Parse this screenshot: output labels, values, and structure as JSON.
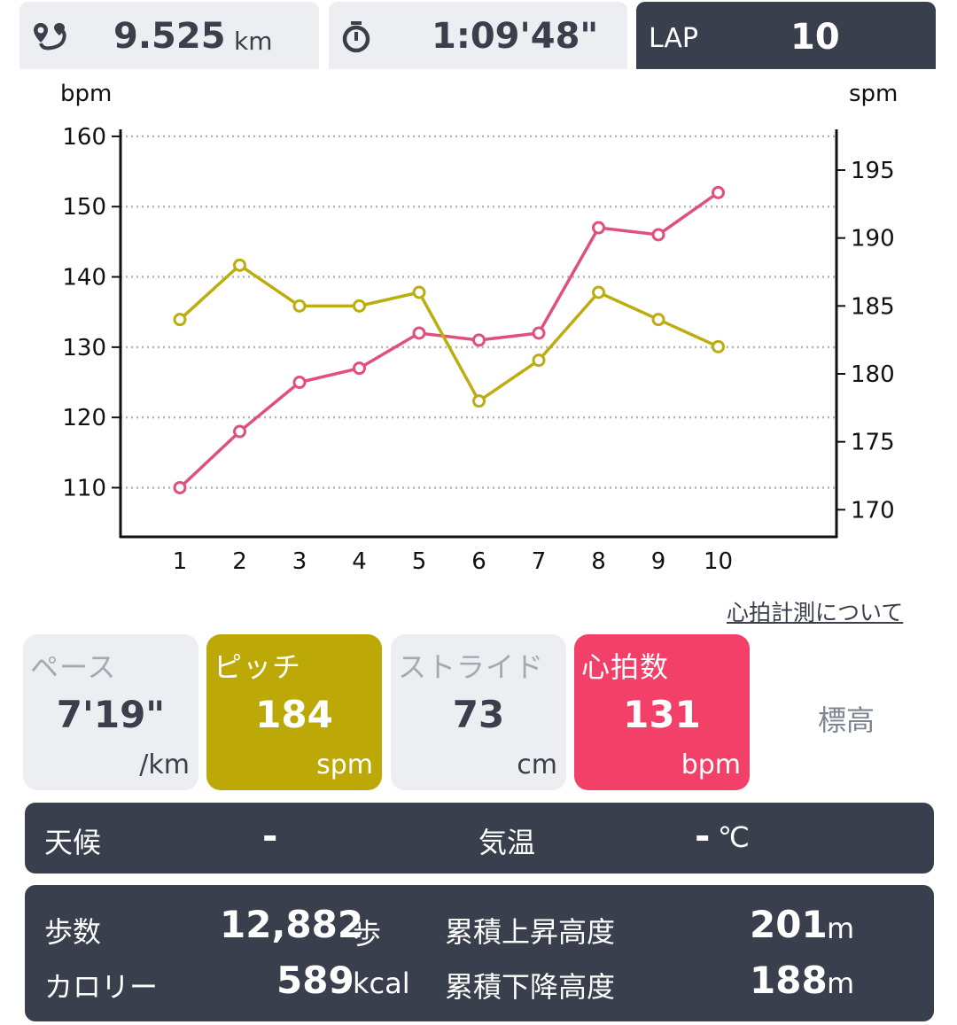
{
  "summary": {
    "distance_value": "9.525",
    "distance_unit": "km",
    "time_value": "1:09'48\"",
    "lap_label": "LAP",
    "lap_value": "10"
  },
  "icons": {
    "distance": "route-pin-icon",
    "time": "stopwatch-icon"
  },
  "chart_data": {
    "type": "line",
    "x": [
      1,
      2,
      3,
      4,
      5,
      6,
      7,
      8,
      9,
      10
    ],
    "categories": [
      "1",
      "2",
      "3",
      "4",
      "5",
      "6",
      "7",
      "8",
      "9",
      "10"
    ],
    "left_axis_label": "bpm",
    "right_axis_label": "spm",
    "left_ticks": [
      "160",
      "150",
      "140",
      "130",
      "120",
      "110"
    ],
    "right_ticks": [
      "195",
      "190",
      "185",
      "180",
      "175",
      "170"
    ],
    "ylim_left": [
      103,
      161
    ],
    "ylim_right": [
      168,
      198
    ],
    "grid": true,
    "series": [
      {
        "axis": "left",
        "color": "#e0507a",
        "values": [
          110,
          118,
          125,
          127,
          132,
          131,
          132,
          147,
          146,
          152
        ]
      },
      {
        "axis": "right",
        "color": "#bcad10",
        "values": [
          184,
          188,
          185,
          185,
          186,
          178,
          181,
          186,
          184,
          182
        ]
      }
    ]
  },
  "link_text": "心拍計測について",
  "tiles": {
    "pace": {
      "label": "ペース",
      "value": "7'19\"",
      "unit": "/km"
    },
    "pitch": {
      "label": "ピッチ",
      "value": "184",
      "unit": "spm"
    },
    "stride": {
      "label": "ストライド",
      "value": "73",
      "unit": "cm"
    },
    "heart": {
      "label": "心拍数",
      "value": "131",
      "unit": "bpm"
    },
    "elevation": {
      "label": "標高"
    }
  },
  "weather": {
    "weather_label": "天候",
    "weather_value": "-",
    "temp_label": "気温",
    "temp_value": "-",
    "temp_unit": "℃"
  },
  "stats": {
    "steps_label": "歩数",
    "steps_value": "12,882",
    "steps_unit": "歩",
    "ascent_label": "累積上昇高度",
    "ascent_value": "201",
    "ascent_unit": "m",
    "calories_label": "カロリー",
    "calories_value": "589",
    "calories_unit": "kcal",
    "descent_label": "累積下降高度",
    "descent_value": "188",
    "descent_unit": "m"
  },
  "colors": {
    "dark_panel": "#3a3f4d",
    "light_tile": "#eceef1",
    "pitch": "#bca907",
    "heart_rate": "#f24068"
  }
}
